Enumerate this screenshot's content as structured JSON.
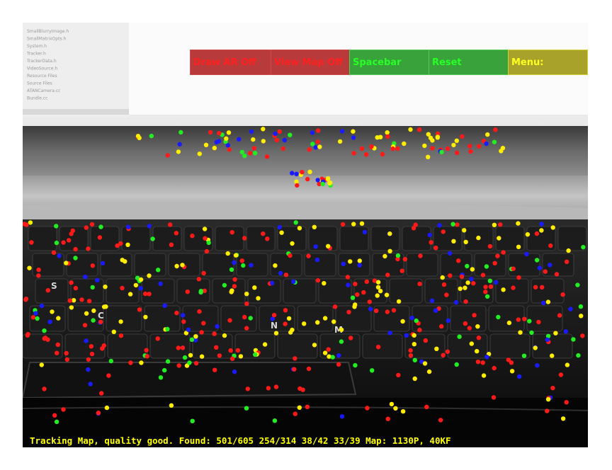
{
  "menu": {
    "draw_ar_label": "Draw AR Off",
    "view_map_label": "View Map Off",
    "spacebar_label": "Spacebar",
    "reset_label": "Reset",
    "menu_label": "Menu:"
  },
  "status_text": "Tracking Map, quality good. Found: 501/605 254/314 38/42 33/39 Map: 1130P, 40KF",
  "background_file_list": [
    "SmallBlurryImage.h",
    "SmallMatrixOpts.h",
    "System.h",
    "Tracker.h",
    "TrackerData.h",
    "VideoSource.h",
    "Resource Files",
    "Source Files",
    "ATANCamera.cc",
    "Bundle.cc"
  ],
  "key_legends": [
    "S",
    "C",
    "N",
    "M"
  ],
  "colors": {
    "point_red": "#ff1a1a",
    "point_yellow": "#ffee00",
    "point_green": "#22ee22",
    "point_blue": "#1a1aff",
    "status_text": "#ffff00",
    "button_red_bg": "#b83a3a",
    "button_green_bg": "#3aa23a",
    "button_yellow_bg": "#a8a22a"
  }
}
